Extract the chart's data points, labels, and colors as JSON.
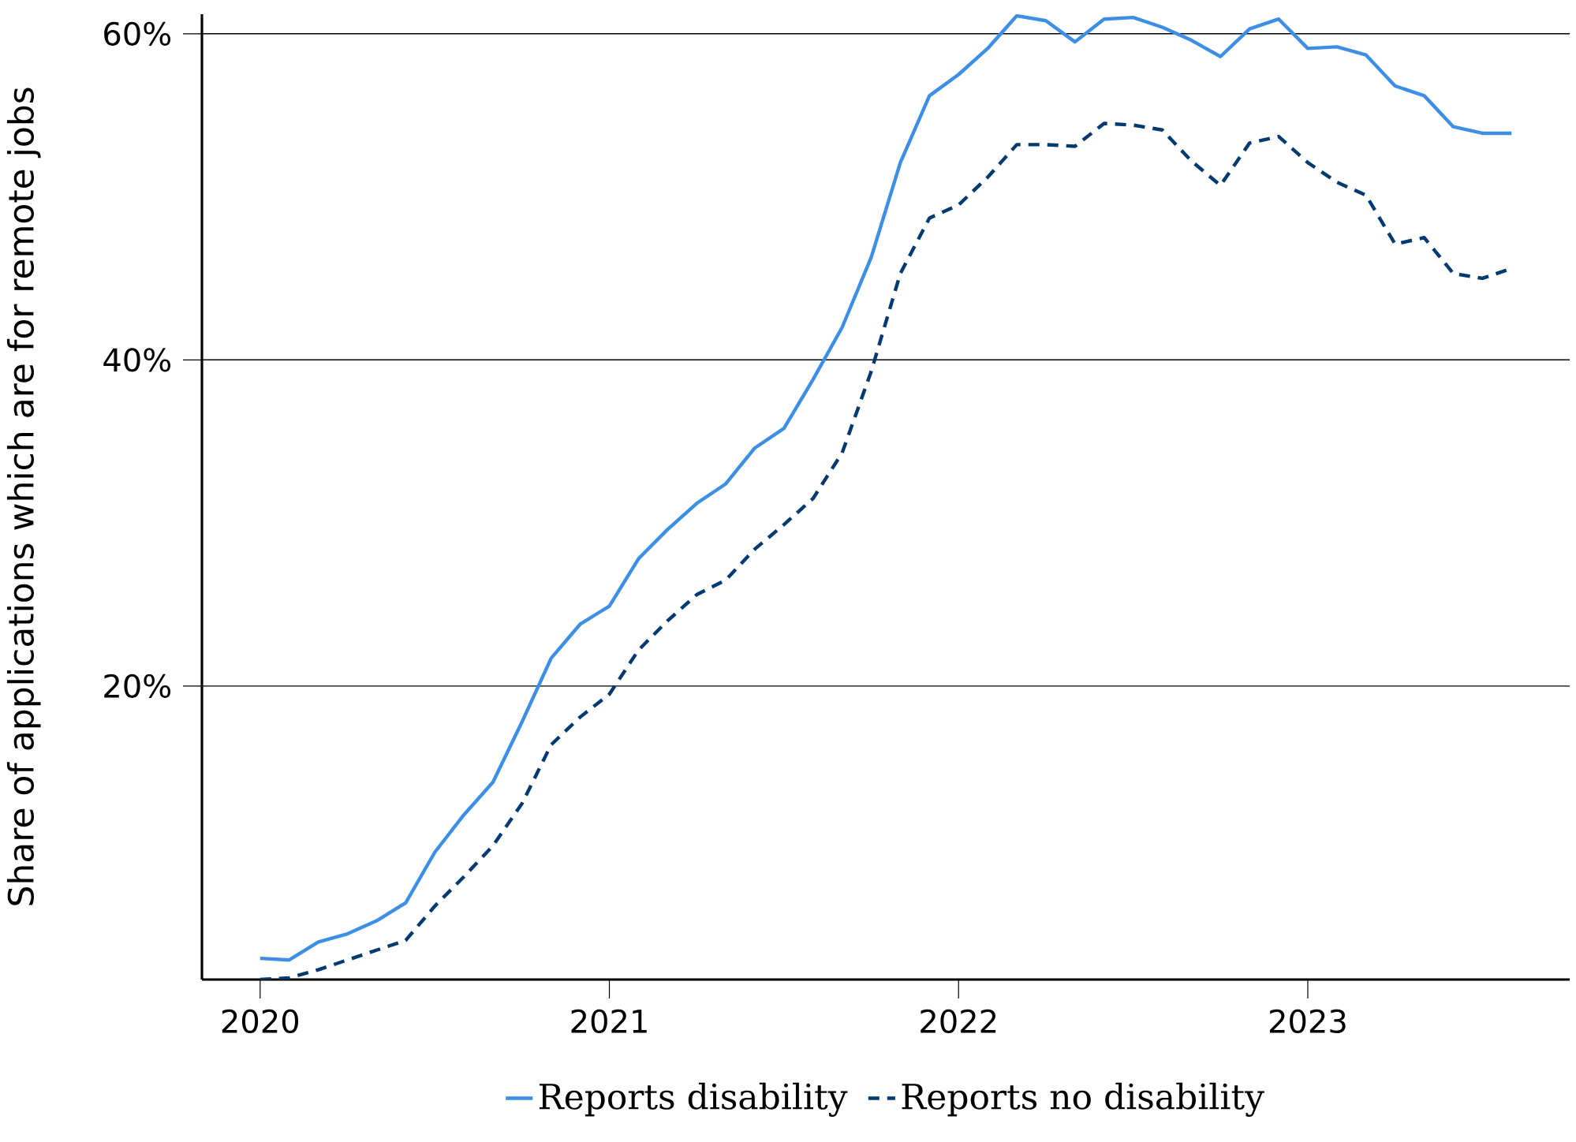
{
  "chart_data": {
    "type": "line",
    "ylabel": "Share of applications which are for remote jobs",
    "x": [
      "2020-01",
      "2020-02",
      "2020-03",
      "2020-04",
      "2020-05",
      "2020-06",
      "2020-07",
      "2020-08",
      "2020-09",
      "2020-10",
      "2020-11",
      "2020-12",
      "2021-01",
      "2021-02",
      "2021-03",
      "2021-04",
      "2021-05",
      "2021-06",
      "2021-07",
      "2021-08",
      "2021-09",
      "2021-10",
      "2021-11",
      "2021-12",
      "2022-01",
      "2022-02",
      "2022-03",
      "2022-04",
      "2022-05",
      "2022-06",
      "2022-07",
      "2022-08",
      "2022-09",
      "2022-10",
      "2022-11",
      "2022-12",
      "2023-01",
      "2023-02",
      "2023-03",
      "2023-04",
      "2023-05",
      "2023-06",
      "2023-07",
      "2023-08"
    ],
    "series": [
      {
        "name": "Reports disability",
        "color": "#3d8fe6",
        "line_style": "solid",
        "values": [
          3.3,
          3.2,
          4.3,
          4.8,
          5.6,
          6.7,
          9.8,
          12.1,
          14.1,
          17.8,
          21.7,
          23.8,
          24.9,
          27.8,
          29.6,
          31.2,
          32.4,
          34.6,
          35.8,
          38.8,
          42.0,
          46.3,
          52.1,
          56.2,
          57.5,
          59.1,
          61.1,
          60.8,
          59.5,
          60.9,
          61.0,
          60.4,
          59.6,
          58.6,
          60.3,
          60.9,
          59.1,
          59.2,
          58.7,
          56.8,
          56.2,
          54.3,
          53.9,
          53.9
        ]
      },
      {
        "name": "Reports no disability",
        "color": "#003a70",
        "line_style": "dashed",
        "values": [
          2.0,
          2.1,
          2.6,
          3.2,
          3.8,
          4.4,
          6.5,
          8.3,
          10.2,
          12.8,
          16.4,
          18.1,
          19.5,
          22.2,
          24.0,
          25.6,
          26.5,
          28.4,
          29.9,
          31.5,
          34.3,
          39.3,
          45.3,
          48.7,
          49.5,
          51.2,
          53.2,
          53.2,
          53.1,
          54.5,
          54.4,
          54.1,
          52.2,
          50.7,
          53.3,
          53.7,
          52.1,
          50.9,
          50.1,
          47.1,
          47.5,
          45.3,
          45.0,
          45.6
        ]
      }
    ],
    "xlim": [
      "2019-11",
      "2023-10"
    ],
    "xticks": [
      "2020",
      "2021",
      "2022",
      "2023"
    ],
    "ylim": [
      2,
      61.2
    ],
    "yticks": [
      {
        "value": 20,
        "label": "20%"
      },
      {
        "value": 40,
        "label": "40%"
      },
      {
        "value": 60,
        "label": "60%"
      }
    ],
    "grid": "y",
    "legend": "bottom",
    "marker": "none"
  }
}
